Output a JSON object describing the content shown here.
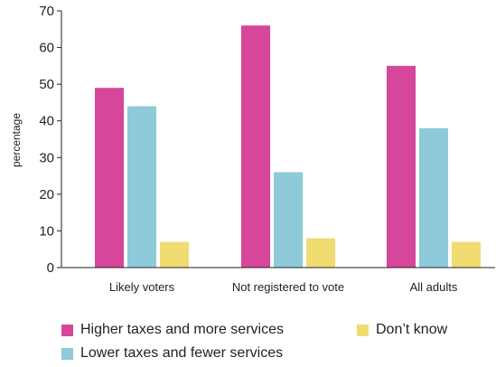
{
  "chart_data": {
    "type": "bar",
    "categories": [
      "Likely voters",
      "Not registered to vote",
      "All adults"
    ],
    "series": [
      {
        "name": "Higher taxes and more services",
        "color": "#d6469b",
        "values": [
          49,
          66,
          55
        ]
      },
      {
        "name": "Lower taxes and fewer services",
        "color": "#8ecada",
        "values": [
          44,
          26,
          38
        ]
      },
      {
        "name": "Don’t know",
        "color": "#f1dc72",
        "values": [
          7,
          8,
          7
        ]
      }
    ],
    "title": "",
    "xlabel": "",
    "ylabel": "percentage",
    "ylim": [
      0,
      70
    ],
    "yticks": [
      0,
      10,
      20,
      30,
      40,
      50,
      60,
      70
    ],
    "grid": false,
    "legend_position": "bottom"
  }
}
